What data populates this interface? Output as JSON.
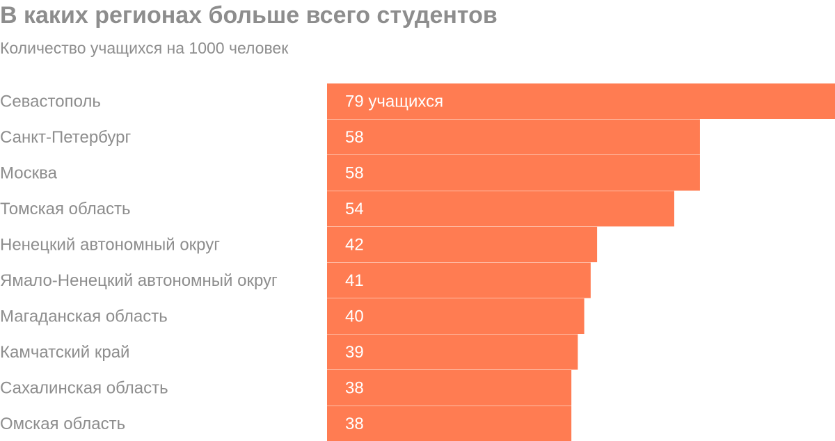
{
  "chart_data": {
    "type": "bar",
    "orientation": "horizontal",
    "title": "В каких регионах больше всего студентов",
    "subtitle": "Количество учащихся на 1000 человек",
    "categories": [
      "Севастополь",
      "Санкт-Петербург",
      "Москва",
      "Томская область",
      "Ненецкий автономный округ",
      "Ямало-Ненецкий автономный округ",
      "Магаданская область",
      "Камчатский край",
      "Сахалинская область",
      "Омская область"
    ],
    "values": [
      79,
      58,
      58,
      54,
      42,
      41,
      40,
      39,
      38,
      38
    ],
    "value_labels": [
      "79 учащихся",
      "58",
      "58",
      "54",
      "42",
      "41",
      "40",
      "39",
      "38",
      "38"
    ],
    "xlim": [
      0,
      79
    ],
    "grid": false,
    "legend": "none",
    "bar_color": "#ff7c52",
    "text_color": "#8d8d8d",
    "label_color": "#ffffff"
  }
}
